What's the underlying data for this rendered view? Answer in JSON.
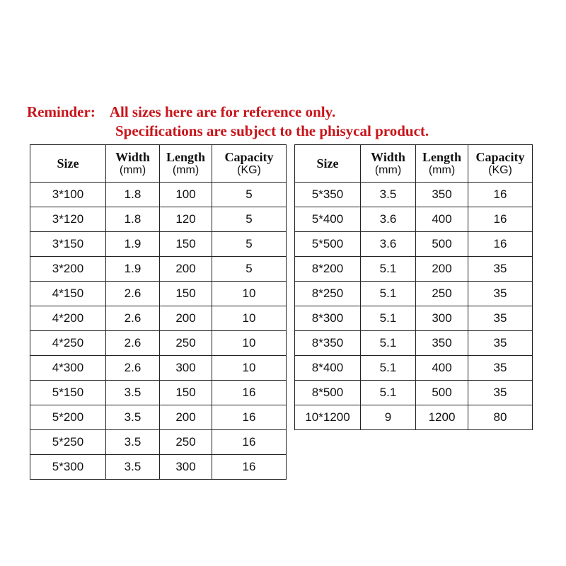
{
  "reminder": {
    "label": "Reminder:",
    "line1": "All sizes here are for reference only.",
    "line2": "Specifications are subject to the phisycal product.",
    "color": "#c8141a"
  },
  "headers": {
    "size": "Size",
    "width": "Width",
    "width_unit": "(mm)",
    "length": "Length",
    "length_unit": "(mm)",
    "capacity": "Capacity",
    "capacity_unit": "(KG)"
  },
  "left_table": [
    [
      "3*100",
      "1.8",
      "100",
      "5"
    ],
    [
      "3*120",
      "1.8",
      "120",
      "5"
    ],
    [
      "3*150",
      "1.9",
      "150",
      "5"
    ],
    [
      "3*200",
      "1.9",
      "200",
      "5"
    ],
    [
      "4*150",
      "2.6",
      "150",
      "10"
    ],
    [
      "4*200",
      "2.6",
      "200",
      "10"
    ],
    [
      "4*250",
      "2.6",
      "250",
      "10"
    ],
    [
      "4*300",
      "2.6",
      "300",
      "10"
    ],
    [
      "5*150",
      "3.5",
      "150",
      "16"
    ],
    [
      "5*200",
      "3.5",
      "200",
      "16"
    ],
    [
      "5*250",
      "3.5",
      "250",
      "16"
    ],
    [
      "5*300",
      "3.5",
      "300",
      "16"
    ]
  ],
  "right_table": [
    [
      "5*350",
      "3.5",
      "350",
      "16"
    ],
    [
      "5*400",
      "3.6",
      "400",
      "16"
    ],
    [
      "5*500",
      "3.6",
      "500",
      "16"
    ],
    [
      "8*200",
      "5.1",
      "200",
      "35"
    ],
    [
      "8*250",
      "5.1",
      "250",
      "35"
    ],
    [
      "8*300",
      "5.1",
      "300",
      "35"
    ],
    [
      "8*350",
      "5.1",
      "350",
      "35"
    ],
    [
      "8*400",
      "5.1",
      "400",
      "35"
    ],
    [
      "8*500",
      "5.1",
      "500",
      "35"
    ],
    [
      "10*1200",
      "9",
      "1200",
      "80"
    ]
  ]
}
